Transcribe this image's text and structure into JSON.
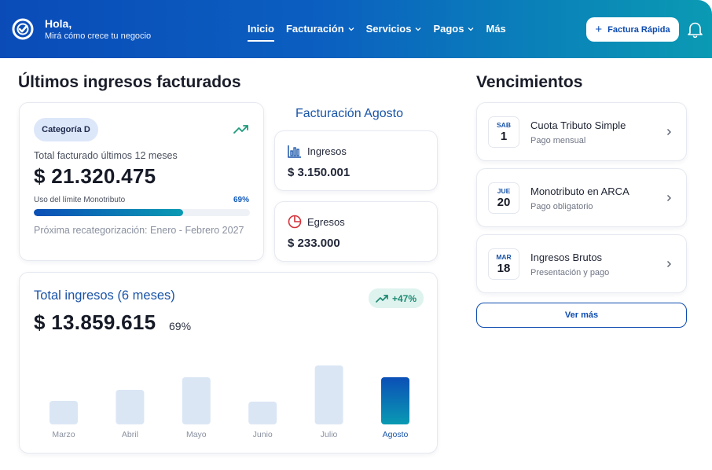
{
  "header": {
    "greeting": "Hola,",
    "subtitle": "Mirá cómo crece tu negocio",
    "logo_icon": "check-circle-logo-icon",
    "nav": [
      {
        "label": "Inicio",
        "active": true,
        "dropdown": false
      },
      {
        "label": "Facturación",
        "active": false,
        "dropdown": true
      },
      {
        "label": "Servicios",
        "active": false,
        "dropdown": true
      },
      {
        "label": "Pagos",
        "active": false,
        "dropdown": true
      },
      {
        "label": "Más",
        "active": false,
        "dropdown": false
      }
    ],
    "quick_button": {
      "icon": "+",
      "label": "Factura Rápida"
    },
    "bell_icon": "bell-icon",
    "gradient_colors": [
      "#0a4bb8",
      "#0a9ab3"
    ]
  },
  "ingresos": {
    "section_title": "Últimos ingresos facturados",
    "summary": {
      "category_badge": "Categoría D",
      "total_label": "Total facturado últimos 12 meses",
      "total_value": "$ 21.320.475",
      "limit_label": "Uso del límite Monotributo",
      "limit_pct_text": "69%",
      "limit_fraction": 0.69,
      "next_recategorization": "Próxima recategorización: Enero - Febrero 2027"
    },
    "month_title": "Facturación Agosto",
    "ingresos_card": {
      "label": "Ingresos",
      "value": "$ 3.150.001",
      "icon": "bar-chart-icon"
    },
    "egresos_card": {
      "label": "Egresos",
      "value": "$ 233.000",
      "icon": "pie-chart-icon"
    }
  },
  "total_ingresos": {
    "title": "Total ingresos (6 meses)",
    "growth_badge": "+47%",
    "value": "$ 13.859.615",
    "pct": "69%"
  },
  "chart_data": {
    "type": "bar",
    "categories": [
      "Marzo",
      "Abril",
      "Mayo",
      "Junio",
      "Julio",
      "Agosto"
    ],
    "values": [
      30,
      44,
      60,
      29,
      75,
      60
    ],
    "highlight": "Agosto",
    "ylim": [
      0,
      80
    ],
    "grid": false,
    "colors": {
      "bar": "#dbe6f5",
      "highlight_top": "#0b4fb6",
      "highlight_bottom": "#0a9ab3"
    }
  },
  "vencimientos": {
    "title": "Vencimientos",
    "items": [
      {
        "dow": "SAB",
        "day": "1",
        "title": "Cuota Tributo Simple",
        "subtitle": "Pago mensual"
      },
      {
        "dow": "JUE",
        "day": "20",
        "title": "Monotributo en ARCA",
        "subtitle": "Pago obligatorio"
      },
      {
        "dow": "MAR",
        "day": "18",
        "title": "Ingresos Brutos",
        "subtitle": "Presentación y pago"
      }
    ],
    "more_label": "Ver más"
  }
}
